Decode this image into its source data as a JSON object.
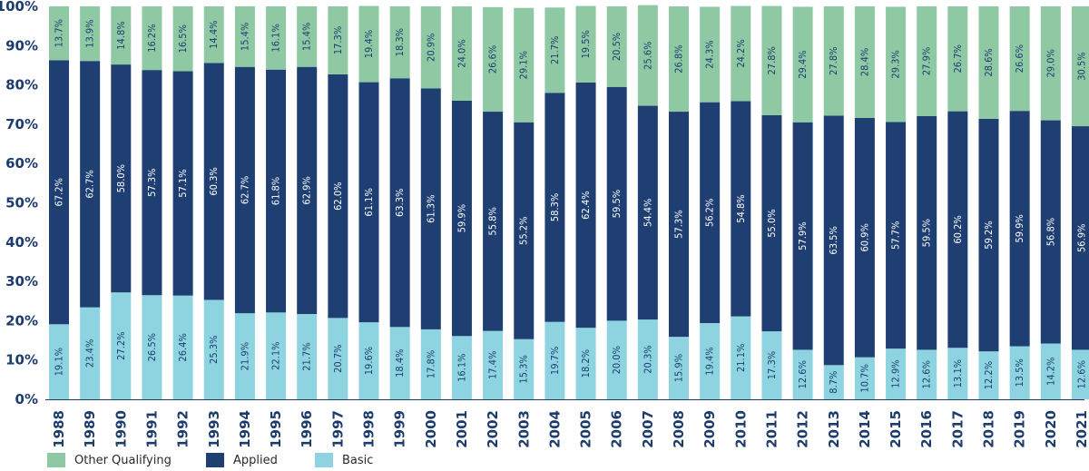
{
  "chart_data": {
    "type": "bar",
    "stacked": true,
    "categories": [
      "1988",
      "1989",
      "1990",
      "1991",
      "1992",
      "1993",
      "1994",
      "1995",
      "1996",
      "1997",
      "1998",
      "1999",
      "2000",
      "2001",
      "2002",
      "2003",
      "2004",
      "2005",
      "2006",
      "2007",
      "2008",
      "2009",
      "2010",
      "2011",
      "2012",
      "2013",
      "2014",
      "2015",
      "2016",
      "2017",
      "2018",
      "2019",
      "2020",
      "2021"
    ],
    "series": [
      {
        "name": "Basic",
        "color": "#8dd4e0",
        "label_color": "#1d3c6e",
        "values": [
          19.1,
          23.4,
          27.2,
          26.5,
          26.4,
          25.3,
          21.9,
          22.1,
          21.7,
          20.7,
          19.6,
          18.4,
          17.8,
          16.1,
          17.4,
          15.3,
          19.7,
          18.2,
          20.0,
          20.3,
          15.9,
          19.4,
          21.1,
          17.3,
          12.6,
          8.7,
          10.7,
          12.9,
          12.6,
          13.1,
          12.2,
          13.5,
          14.2,
          12.6
        ],
        "labels": [
          "19.1%",
          "23.4%",
          "27.2%",
          "26.5%",
          "26.4%",
          "25.3%",
          "21.9%",
          "22.1%",
          "21.7%",
          "20.7%",
          "19.6%",
          "18.4%",
          "17.8%",
          "16.1%",
          "17.4%",
          "15.3%",
          "19.7%",
          "18.2%",
          "20.0%",
          "20.3%",
          "15.9%",
          "19.4%",
          "21.1%",
          "17.3%",
          "12.6%",
          "8.7%",
          "10.7%",
          "12.9%",
          "12.6%",
          "13.1%",
          "12.2%",
          "13.5%",
          "14.2%",
          "12.6%"
        ]
      },
      {
        "name": "Applied",
        "color": "#1f3f73",
        "label_color": "#ffffff",
        "values": [
          67.2,
          62.7,
          58.0,
          57.3,
          57.1,
          60.3,
          62.7,
          61.8,
          62.9,
          62.0,
          61.1,
          63.3,
          61.3,
          59.9,
          55.8,
          55.2,
          58.3,
          62.4,
          59.5,
          54.4,
          57.3,
          56.2,
          54.8,
          55.0,
          57.9,
          63.5,
          60.9,
          57.7,
          59.5,
          60.2,
          59.2,
          59.9,
          56.8,
          56.9
        ],
        "labels": [
          "67.2%",
          "62.7%",
          "58.0%",
          "57.3%",
          "57.1%",
          "60.3%",
          "62.7%",
          "61.8%",
          "62.9%",
          "62.0%",
          "61.1%",
          "63.3%",
          "61.3%",
          "59.9%",
          "55.8%",
          "55.2%",
          "58.3%",
          "62.4%",
          "59.5%",
          "54.4%",
          "57.3%",
          "56.2%",
          "54.8%",
          "55.0%",
          "57.9%",
          "63.5%",
          "60.9%",
          "57.7%",
          "59.5%",
          "60.2%",
          "59.2%",
          "59.9%",
          "56.8%",
          "56.9%"
        ]
      },
      {
        "name": "Other Qualifying",
        "color": "#8ec9a4",
        "label_color": "#1d3c6e",
        "values": [
          13.7,
          13.9,
          14.8,
          16.2,
          16.5,
          14.4,
          15.4,
          16.1,
          15.4,
          17.3,
          19.4,
          18.3,
          20.9,
          24.0,
          26.6,
          29.1,
          21.7,
          19.5,
          20.5,
          25.6,
          26.8,
          24.3,
          24.2,
          27.8,
          29.4,
          27.8,
          28.4,
          29.3,
          27.9,
          26.7,
          28.6,
          26.6,
          29.0,
          30.5
        ],
        "labels": [
          "13.7%",
          "13.9%",
          "14.8%",
          "16.2%",
          "16.5%",
          "14.4%",
          "15.4%",
          "16.1%",
          "15.4%",
          "17.3%",
          "19.4%",
          "18.3%",
          "20.9%",
          "24.0%",
          "26.6%",
          "29.1%",
          "21.7%",
          "19.5%",
          "20.5%",
          "25.6%",
          "26.8%",
          "24.3%",
          "24.2%",
          "27.8%",
          "29.4%",
          "27.8%",
          "28.4%",
          "29.3%",
          "27.9%",
          "26.7%",
          "28.6%",
          "26.6%",
          "29.0%",
          "30.5%"
        ]
      }
    ],
    "ylim": [
      0,
      100
    ],
    "yticks": [
      "0%",
      "10%",
      "20%",
      "30%",
      "40%",
      "50%",
      "60%",
      "70%",
      "80%",
      "90%",
      "100%"
    ],
    "title": "",
    "xlabel": "",
    "ylabel": "",
    "legend_position": "bottom-left",
    "grid": false
  },
  "legend": [
    {
      "label": "Other Qualifying",
      "color": "#8ec9a4"
    },
    {
      "label": "Applied",
      "color": "#1f3f73"
    },
    {
      "label": "Basic",
      "color": "#8dd4e0"
    }
  ]
}
